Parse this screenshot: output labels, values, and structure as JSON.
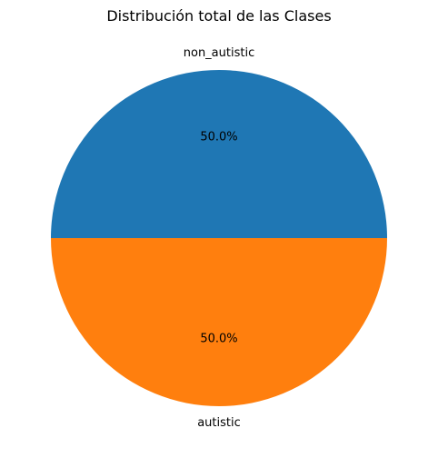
{
  "chart_data": {
    "type": "pie",
    "title": "Distribución total de las Clases",
    "slices": [
      {
        "label": "non_autistic",
        "value": 50.0,
        "percent_label": "50.0%",
        "color": "#1f77b4"
      },
      {
        "label": "autistic",
        "value": 50.0,
        "percent_label": "50.0%",
        "color": "#ff7f0e"
      }
    ],
    "start_angle_deg": 0,
    "direction": "counterclockwise"
  }
}
